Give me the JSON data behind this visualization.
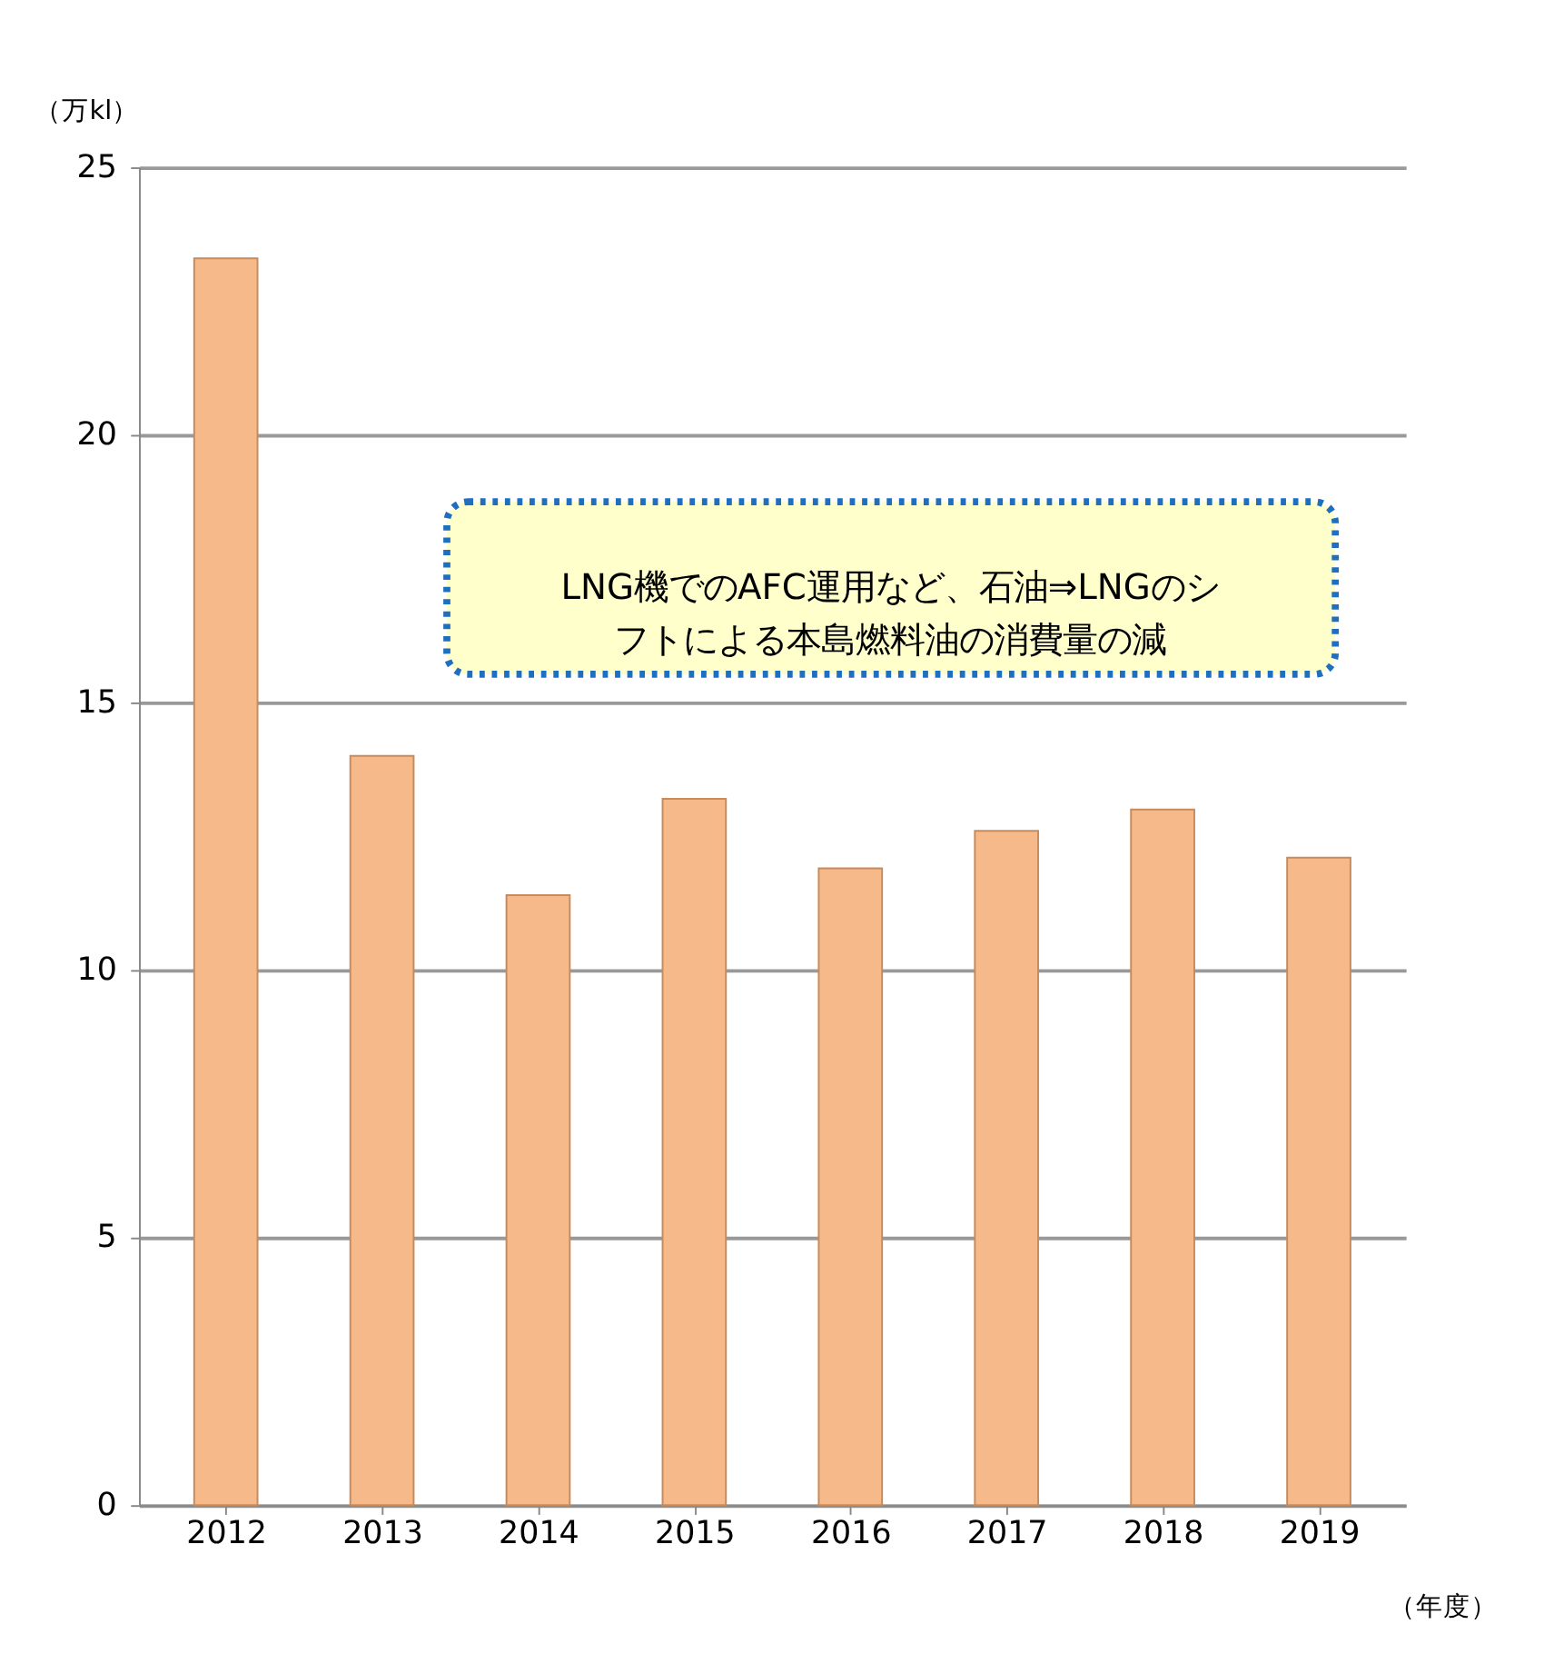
{
  "chart_data": {
    "type": "bar",
    "ylabel": "（万kl）",
    "xlabel": "（年度）",
    "categories": [
      "2012",
      "2013",
      "2014",
      "2015",
      "2016",
      "2017",
      "2018",
      "2019"
    ],
    "values": [
      23.3,
      14.0,
      11.4,
      13.2,
      11.9,
      12.6,
      13.0,
      12.1
    ],
    "color": "#f5b98a",
    "ylim": [
      0,
      25
    ],
    "yticks": [
      0,
      5,
      10,
      15,
      20,
      25
    ],
    "grid": "y",
    "annotations": [
      "LNG機でのAFC運用など、石油⇒LNGのシフトによる本島燃料油の消費量の減"
    ]
  }
}
